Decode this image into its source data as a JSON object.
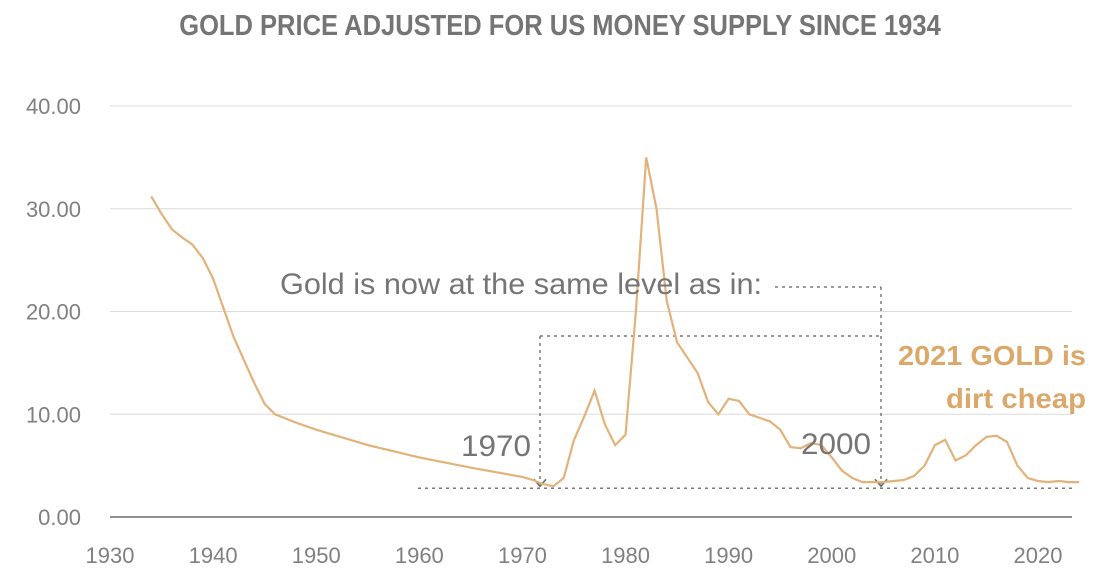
{
  "chart_data": {
    "type": "line",
    "title": "GOLD PRICE ADJUSTED FOR US MONEY SUPPLY SINCE 1934",
    "xlabel": "",
    "ylabel": "",
    "xlim": [
      1930,
      2024
    ],
    "ylim": [
      0,
      40
    ],
    "x_ticks": [
      "1930",
      "1940",
      "1950",
      "1960",
      "1970",
      "1980",
      "1990",
      "2000",
      "2010",
      "2020"
    ],
    "y_ticks": [
      "0.00",
      "10.00",
      "20.00",
      "30.00",
      "40.00"
    ],
    "grid": "horizontal",
    "line_color": "#e2b27a",
    "series": [
      {
        "x": [
          1934,
          1935,
          1936,
          1937,
          1938,
          1939,
          1940,
          1942,
          1944,
          1945,
          1946,
          1948,
          1950,
          1955,
          1960,
          1965,
          1970,
          1971,
          1972,
          1973,
          1974,
          1975,
          1976,
          1977,
          1978,
          1979,
          1980,
          1981,
          1982,
          1983,
          1984,
          1985,
          1986,
          1987,
          1988,
          1989,
          1990,
          1991,
          1992,
          1994,
          1995,
          1996,
          1997,
          1998,
          1999,
          2000,
          2001,
          2002,
          2003,
          2005,
          2006,
          2007,
          2008,
          2009,
          2010,
          2011,
          2012,
          2013,
          2014,
          2015,
          2016,
          2017,
          2018,
          2019,
          2020,
          2021,
          2022,
          2023,
          2024
        ],
        "y": [
          31.2,
          29.5,
          28.0,
          27.2,
          26.5,
          25.2,
          23.2,
          17.5,
          13.0,
          11.0,
          10.0,
          9.2,
          8.5,
          7.0,
          5.8,
          4.8,
          3.9,
          3.6,
          3.2,
          3.0,
          3.8,
          7.5,
          9.8,
          12.3,
          9.0,
          7.0,
          8.0,
          20.0,
          35.0,
          30.0,
          21.0,
          17.0,
          15.5,
          14.0,
          11.2,
          10.0,
          11.5,
          11.3,
          10.0,
          9.3,
          8.5,
          6.8,
          6.7,
          7.2,
          7.0,
          5.8,
          4.5,
          3.8,
          3.4,
          3.4,
          3.5,
          3.6,
          4.0,
          5.0,
          7.0,
          7.5,
          5.5,
          6.0,
          7.0,
          7.8,
          7.9,
          7.3,
          5.0,
          3.8,
          3.5,
          3.4,
          3.5,
          3.4,
          3.4
        ]
      }
    ],
    "reference_line": {
      "y": 2.8
    },
    "annotations": {
      "main": "Gold is now at the same level as in:",
      "year1": "1970",
      "year2": "2000",
      "highlight_line1": "2021 GOLD is",
      "highlight_line2": "dirt cheap",
      "highlight_color": "#dba86a"
    }
  }
}
